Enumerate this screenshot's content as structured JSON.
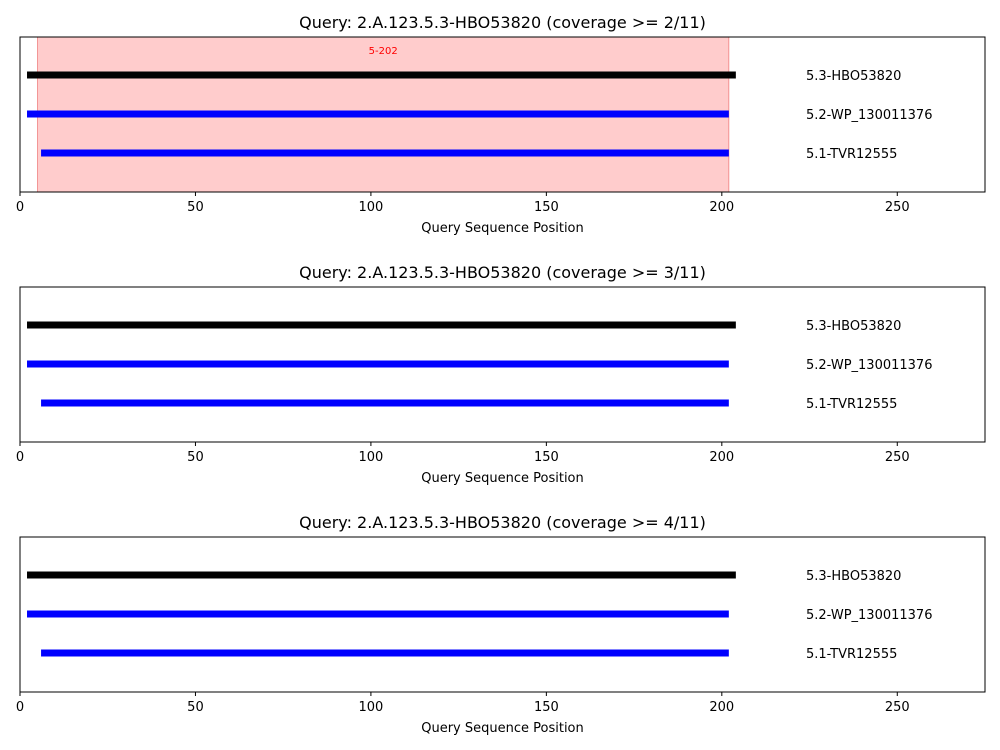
{
  "colors": {
    "query": "#000000",
    "hit": "#0000ff",
    "highlight_fill": "#ffcccc",
    "highlight_stroke": "#f08080",
    "highlight_label": "#ff0000",
    "axis": "#000000",
    "background": "#ffffff"
  },
  "chart_data": [
    {
      "type": "line",
      "title": "Query: 2.A.123.5.3-HBO53820 (coverage >= 2/11)",
      "xlabel": "Query Sequence Position",
      "xlim": [
        0,
        275
      ],
      "xticks": [
        0,
        50,
        100,
        150,
        200,
        250
      ],
      "grid": false,
      "highlight": {
        "start": 5,
        "end": 202,
        "label": "5-202"
      },
      "series": [
        {
          "name": "5.3-HBO53820",
          "start": 2,
          "end": 204,
          "role": "query"
        },
        {
          "name": "5.2-WP_130011376",
          "start": 2,
          "end": 202,
          "role": "hit"
        },
        {
          "name": "5.1-TVR12555",
          "start": 6,
          "end": 202,
          "role": "hit"
        }
      ]
    },
    {
      "type": "line",
      "title": "Query: 2.A.123.5.3-HBO53820 (coverage >= 3/11)",
      "xlabel": "Query Sequence Position",
      "xlim": [
        0,
        275
      ],
      "xticks": [
        0,
        50,
        100,
        150,
        200,
        250
      ],
      "grid": false,
      "highlight": null,
      "series": [
        {
          "name": "5.3-HBO53820",
          "start": 2,
          "end": 204,
          "role": "query"
        },
        {
          "name": "5.2-WP_130011376",
          "start": 2,
          "end": 202,
          "role": "hit"
        },
        {
          "name": "5.1-TVR12555",
          "start": 6,
          "end": 202,
          "role": "hit"
        }
      ]
    },
    {
      "type": "line",
      "title": "Query: 2.A.123.5.3-HBO53820 (coverage >= 4/11)",
      "xlabel": "Query Sequence Position",
      "xlim": [
        0,
        275
      ],
      "xticks": [
        0,
        50,
        100,
        150,
        200,
        250
      ],
      "grid": false,
      "highlight": null,
      "series": [
        {
          "name": "5.3-HBO53820",
          "start": 2,
          "end": 204,
          "role": "query"
        },
        {
          "name": "5.2-WP_130011376",
          "start": 2,
          "end": 202,
          "role": "hit"
        },
        {
          "name": "5.1-TVR12555",
          "start": 6,
          "end": 202,
          "role": "hit"
        }
      ]
    }
  ]
}
